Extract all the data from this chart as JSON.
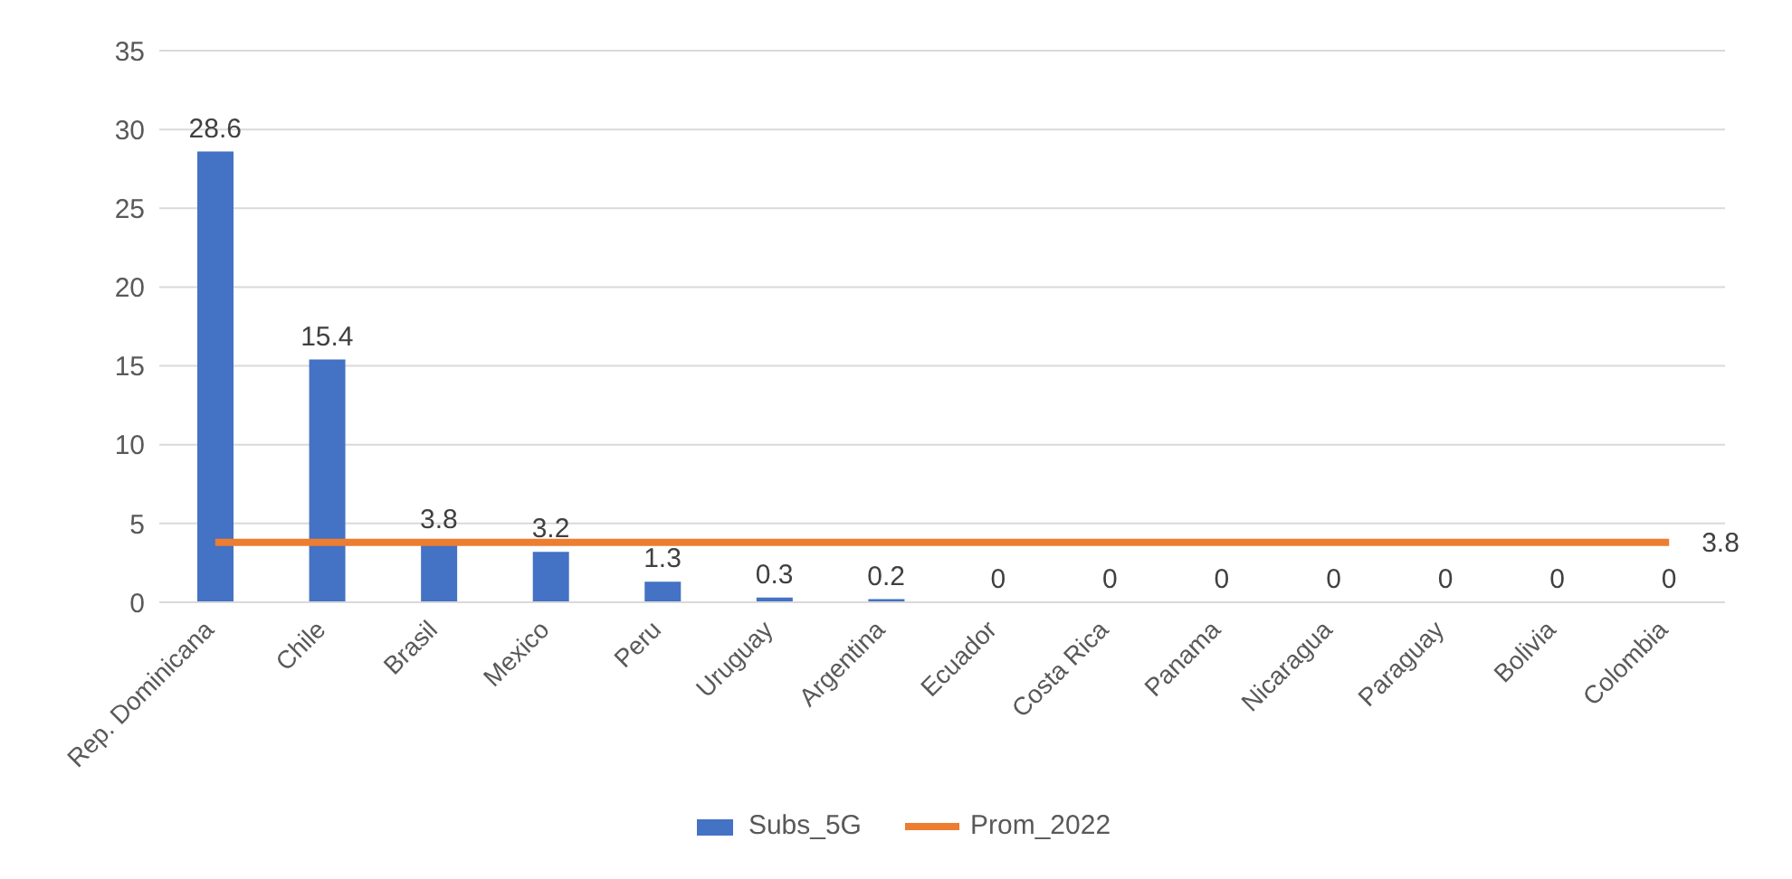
{
  "chart_data": {
    "type": "bar",
    "categories": [
      "Rep. Dominicana",
      "Chile",
      "Brasil",
      "Mexico",
      "Peru",
      "Uruguay",
      "Argentina",
      "Ecuador",
      "Costa Rica",
      "Panama",
      "Nicaragua",
      "Paraguay",
      "Bolivia",
      "Colombia"
    ],
    "series": [
      {
        "name": "Subs_5G",
        "color": "#4472c4",
        "values": [
          28.6,
          15.4,
          3.8,
          3.2,
          1.3,
          0.3,
          0.2,
          0,
          0,
          0,
          0,
          0,
          0,
          0
        ],
        "value_labels": [
          "28.6",
          "15.4",
          "3.8",
          "3.2",
          "1.3",
          "0.3",
          "0.2",
          "0",
          "0",
          "0",
          "0",
          "0",
          "0",
          "0"
        ]
      },
      {
        "name": "Prom_2022",
        "type": "line",
        "color": "#ed7d31",
        "values": [
          3.8,
          3.8,
          3.8,
          3.8,
          3.8,
          3.8,
          3.8,
          3.8,
          3.8,
          3.8,
          3.8,
          3.8,
          3.8,
          3.8
        ],
        "value_labels": [
          null,
          null,
          null,
          null,
          null,
          null,
          null,
          null,
          null,
          null,
          null,
          null,
          null,
          "3.8"
        ],
        "marker": "none"
      }
    ],
    "ylim": [
      0,
      35
    ],
    "yticks": [
      0,
      5,
      10,
      15,
      20,
      25,
      30,
      35
    ],
    "grid": "y",
    "legend": "bottom"
  }
}
